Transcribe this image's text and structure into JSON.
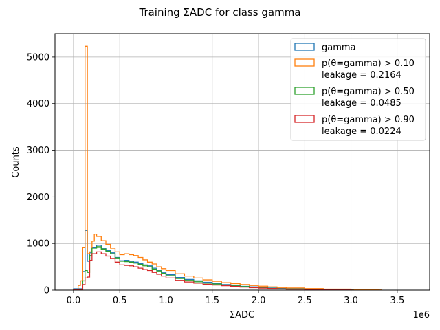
{
  "chart_data": {
    "type": "histogram",
    "title": "Training ΣADC for class gamma",
    "xlabel": "ΣADC",
    "ylabel": "Counts",
    "x_offset_label": "1e6",
    "x_scale_factor": 1000000,
    "xlim": [
      -200000,
      3850000
    ],
    "ylim": [
      0,
      5500
    ],
    "x_ticks": [
      0,
      500000,
      1000000,
      1500000,
      2000000,
      2500000,
      3000000,
      3500000
    ],
    "x_tick_labels": [
      "0.0",
      "0.5",
      "1.0",
      "1.5",
      "2.0",
      "2.5",
      "3.0",
      "3.5"
    ],
    "y_ticks": [
      0,
      1000,
      2000,
      3000,
      4000,
      5000
    ],
    "y_tick_labels": [
      "0",
      "1000",
      "2000",
      "3000",
      "4000",
      "5000"
    ],
    "grid": true,
    "legend_position": "top-right",
    "bin_width": 25000,
    "series": [
      {
        "name": "gamma",
        "color": "#1f77b4",
        "x": [
          0,
          100000,
          125000,
          150000,
          175000,
          200000,
          250000,
          300000,
          350000,
          400000,
          450000,
          500000,
          550000,
          600000,
          650000,
          700000,
          750000,
          800000,
          850000,
          900000,
          950000,
          1000000,
          1100000,
          1200000,
          1300000,
          1400000,
          1500000,
          1600000,
          1700000,
          1800000,
          1900000,
          2000000,
          2100000,
          2200000,
          2300000,
          2500000,
          2700000,
          3000000,
          3300000
        ],
        "values": [
          30,
          400,
          1280,
          620,
          800,
          920,
          960,
          900,
          850,
          800,
          700,
          630,
          640,
          620,
          600,
          570,
          540,
          520,
          470,
          430,
          380,
          330,
          270,
          230,
          200,
          170,
          150,
          120,
          100,
          80,
          70,
          55,
          45,
          35,
          28,
          20,
          12,
          6,
          2
        ]
      },
      {
        "name": "p(θ=gamma) > 0.10\nleakage = 0.2164",
        "color": "#ff7f0e",
        "x": [
          0,
          50000,
          75000,
          100000,
          125000,
          150000,
          175000,
          200000,
          225000,
          250000,
          300000,
          350000,
          400000,
          450000,
          500000,
          550000,
          600000,
          650000,
          700000,
          750000,
          800000,
          850000,
          900000,
          950000,
          1000000,
          1100000,
          1200000,
          1300000,
          1400000,
          1500000,
          1600000,
          1700000,
          1800000,
          1900000,
          2000000,
          2100000,
          2200000,
          2300000,
          2500000,
          2700000,
          3000000,
          3300000
        ],
        "values": [
          20,
          100,
          200,
          920,
          5230,
          780,
          820,
          1050,
          1200,
          1150,
          1060,
          980,
          900,
          820,
          760,
          780,
          760,
          740,
          700,
          650,
          600,
          560,
          500,
          460,
          420,
          350,
          300,
          260,
          220,
          190,
          160,
          140,
          120,
          100,
          85,
          70,
          55,
          45,
          32,
          22,
          10,
          3
        ]
      },
      {
        "name": "p(θ=gamma) > 0.50\nleakage = 0.0485",
        "color": "#2ca02c",
        "x": [
          0,
          100000,
          125000,
          150000,
          175000,
          200000,
          250000,
          300000,
          350000,
          400000,
          450000,
          500000,
          550000,
          600000,
          650000,
          700000,
          750000,
          800000,
          850000,
          900000,
          950000,
          1000000,
          1100000,
          1200000,
          1300000,
          1400000,
          1500000,
          1600000,
          1700000,
          1800000,
          1900000,
          2000000,
          2100000,
          2200000,
          2300000,
          2500000,
          2700000,
          3000000
        ],
        "values": [
          20,
          200,
          420,
          380,
          740,
          900,
          930,
          880,
          830,
          780,
          690,
          620,
          610,
          600,
          580,
          550,
          520,
          500,
          450,
          410,
          360,
          310,
          250,
          210,
          180,
          150,
          130,
          110,
          90,
          75,
          60,
          48,
          38,
          30,
          22,
          15,
          8,
          3
        ]
      },
      {
        "name": "p(θ=gamma) > 0.90\nleakage = 0.0224",
        "color": "#d62728",
        "x": [
          0,
          100000,
          125000,
          150000,
          175000,
          200000,
          250000,
          300000,
          350000,
          400000,
          450000,
          500000,
          550000,
          600000,
          650000,
          700000,
          750000,
          800000,
          850000,
          900000,
          950000,
          1000000,
          1100000,
          1200000,
          1300000,
          1400000,
          1500000,
          1600000,
          1700000,
          1800000,
          1900000,
          2000000,
          2100000,
          2200000,
          2300000,
          2500000,
          2700000,
          3000000
        ],
        "values": [
          15,
          120,
          260,
          280,
          640,
          780,
          820,
          780,
          730,
          680,
          600,
          540,
          530,
          520,
          500,
          470,
          440,
          420,
          380,
          340,
          300,
          260,
          210,
          175,
          150,
          125,
          110,
          95,
          78,
          64,
          52,
          42,
          34,
          26,
          20,
          13,
          7,
          2
        ]
      }
    ]
  }
}
